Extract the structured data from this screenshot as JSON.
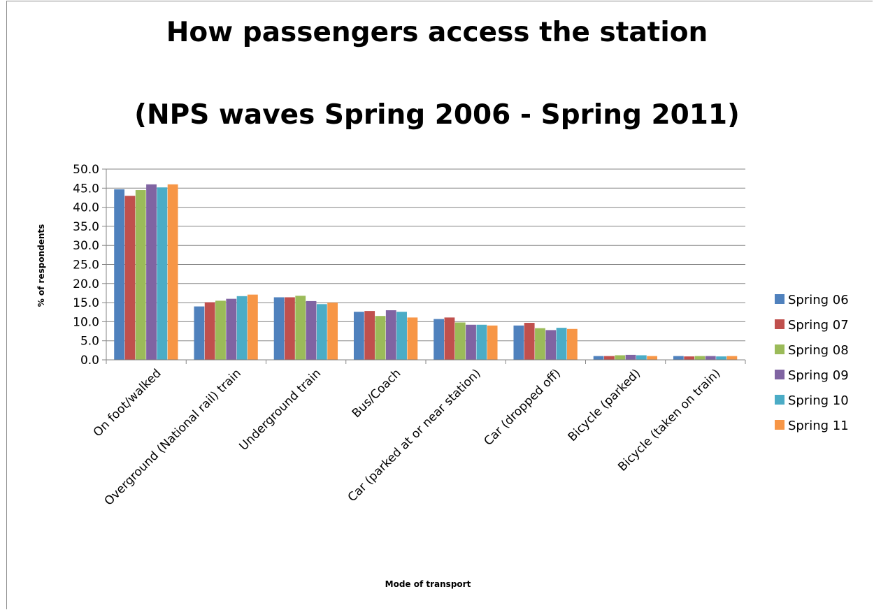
{
  "chart_data": {
    "type": "bar",
    "title": "How passengers access the station",
    "subtitle": "(NPS waves Spring 2006 - Spring 2011)",
    "xlabel": "Mode of transport",
    "ylabel": "% of respondents",
    "ylim": [
      0,
      50
    ],
    "ytick_step": 5,
    "yticks": [
      "0.0",
      "5.0",
      "10.0",
      "15.0",
      "20.0",
      "25.0",
      "30.0",
      "35.0",
      "40.0",
      "45.0",
      "50.0"
    ],
    "grid": true,
    "legend_position": "right",
    "categories": [
      "On foot/walked",
      "Overground (National rail) train",
      "Underground train",
      "Bus/Coach",
      "Car (parked at or near station)",
      "Car (dropped off)",
      "Bicycle (parked)",
      "Bicycle (taken on train)"
    ],
    "series": [
      {
        "name": "Spring 06",
        "color": "#4f81bd",
        "values": [
          44.7,
          14.0,
          16.4,
          12.6,
          10.7,
          9.0,
          1.0,
          1.0
        ]
      },
      {
        "name": "Spring 07",
        "color": "#c0504d",
        "values": [
          43.0,
          15.1,
          16.4,
          12.8,
          11.1,
          9.7,
          1.0,
          0.9
        ]
      },
      {
        "name": "Spring 08",
        "color": "#9bbb59",
        "values": [
          44.5,
          15.5,
          16.8,
          11.5,
          9.8,
          8.3,
          1.2,
          1.0
        ]
      },
      {
        "name": "Spring 09",
        "color": "#8064a2",
        "values": [
          46.0,
          16.0,
          15.4,
          13.0,
          9.2,
          7.8,
          1.3,
          1.0
        ]
      },
      {
        "name": "Spring 10",
        "color": "#4bacc6",
        "values": [
          45.2,
          16.7,
          14.6,
          12.6,
          9.2,
          8.4,
          1.2,
          0.9
        ]
      },
      {
        "name": "Spring 11",
        "color": "#f79646",
        "values": [
          46.0,
          17.1,
          15.0,
          11.1,
          9.0,
          8.1,
          1.0,
          1.0
        ]
      }
    ]
  }
}
